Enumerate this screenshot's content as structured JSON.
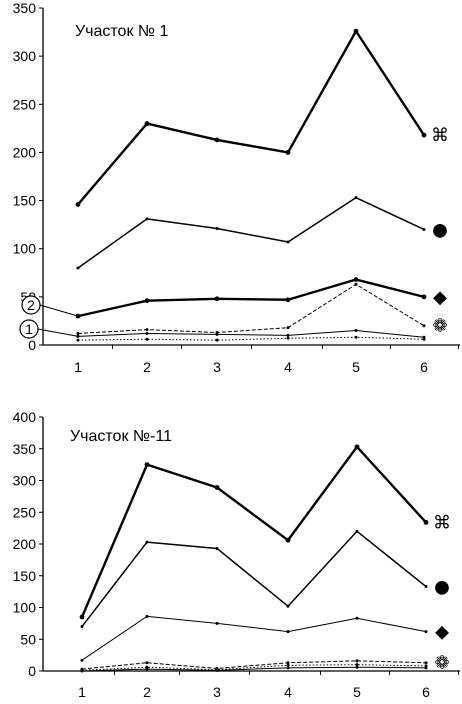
{
  "chart_data": [
    {
      "type": "line",
      "title": "Участок № 1",
      "xlabel": "",
      "ylabel": "",
      "categories": [
        "1",
        "2",
        "3",
        "4",
        "5",
        "6"
      ],
      "ylim": [
        0,
        350
      ],
      "yticks": [
        "0",
        "50",
        "100",
        "150",
        "200",
        "250",
        "300",
        "350"
      ],
      "grid": false,
      "series": [
        {
          "values": [
            146,
            230,
            213,
            200,
            326,
            218
          ],
          "marker_symbol": "⌘",
          "style": "thick"
        },
        {
          "values": [
            80,
            131,
            121,
            107,
            153,
            120
          ],
          "marker_symbol": "●",
          "style": "medium"
        },
        {
          "values": [
            30,
            46,
            48,
            47,
            68,
            50
          ],
          "marker_symbol": "◆",
          "style": "thick"
        },
        {
          "values": [
            12,
            16,
            13,
            18,
            63,
            20
          ],
          "marker_symbol": "❁",
          "style": "dashed"
        },
        {
          "values": [
            9,
            12,
            11,
            10,
            15,
            8
          ],
          "style": "thin"
        },
        {
          "values": [
            5,
            6,
            5,
            7,
            8,
            6
          ],
          "style": "dotted"
        }
      ],
      "annotations": [
        "2",
        "1"
      ]
    },
    {
      "type": "line",
      "title": "Участок №-11",
      "xlabel": "",
      "ylabel": "",
      "categories": [
        "1",
        "2",
        "3",
        "4",
        "5",
        "6"
      ],
      "ylim": [
        0,
        400
      ],
      "yticks": [
        "0",
        "50",
        "100",
        "150",
        "200",
        "250",
        "300",
        "350",
        "400"
      ],
      "grid": false,
      "series": [
        {
          "values": [
            85,
            325,
            289,
            206,
            353,
            234
          ],
          "marker_symbol": "⌘",
          "style": "thick"
        },
        {
          "values": [
            70,
            203,
            193,
            102,
            220,
            133
          ],
          "marker_symbol": "●",
          "style": "medium"
        },
        {
          "values": [
            17,
            86,
            75,
            62,
            83,
            62
          ],
          "marker_symbol": "◆",
          "style": "thin"
        },
        {
          "values": [
            3,
            13,
            4,
            13,
            16,
            13
          ],
          "marker_symbol": "❁",
          "style": "dashed"
        },
        {
          "values": [
            1,
            6,
            2,
            9,
            10,
            8
          ],
          "style": "dotted"
        },
        {
          "values": [
            0,
            3,
            1,
            5,
            6,
            5
          ],
          "style": "thin"
        }
      ]
    }
  ]
}
